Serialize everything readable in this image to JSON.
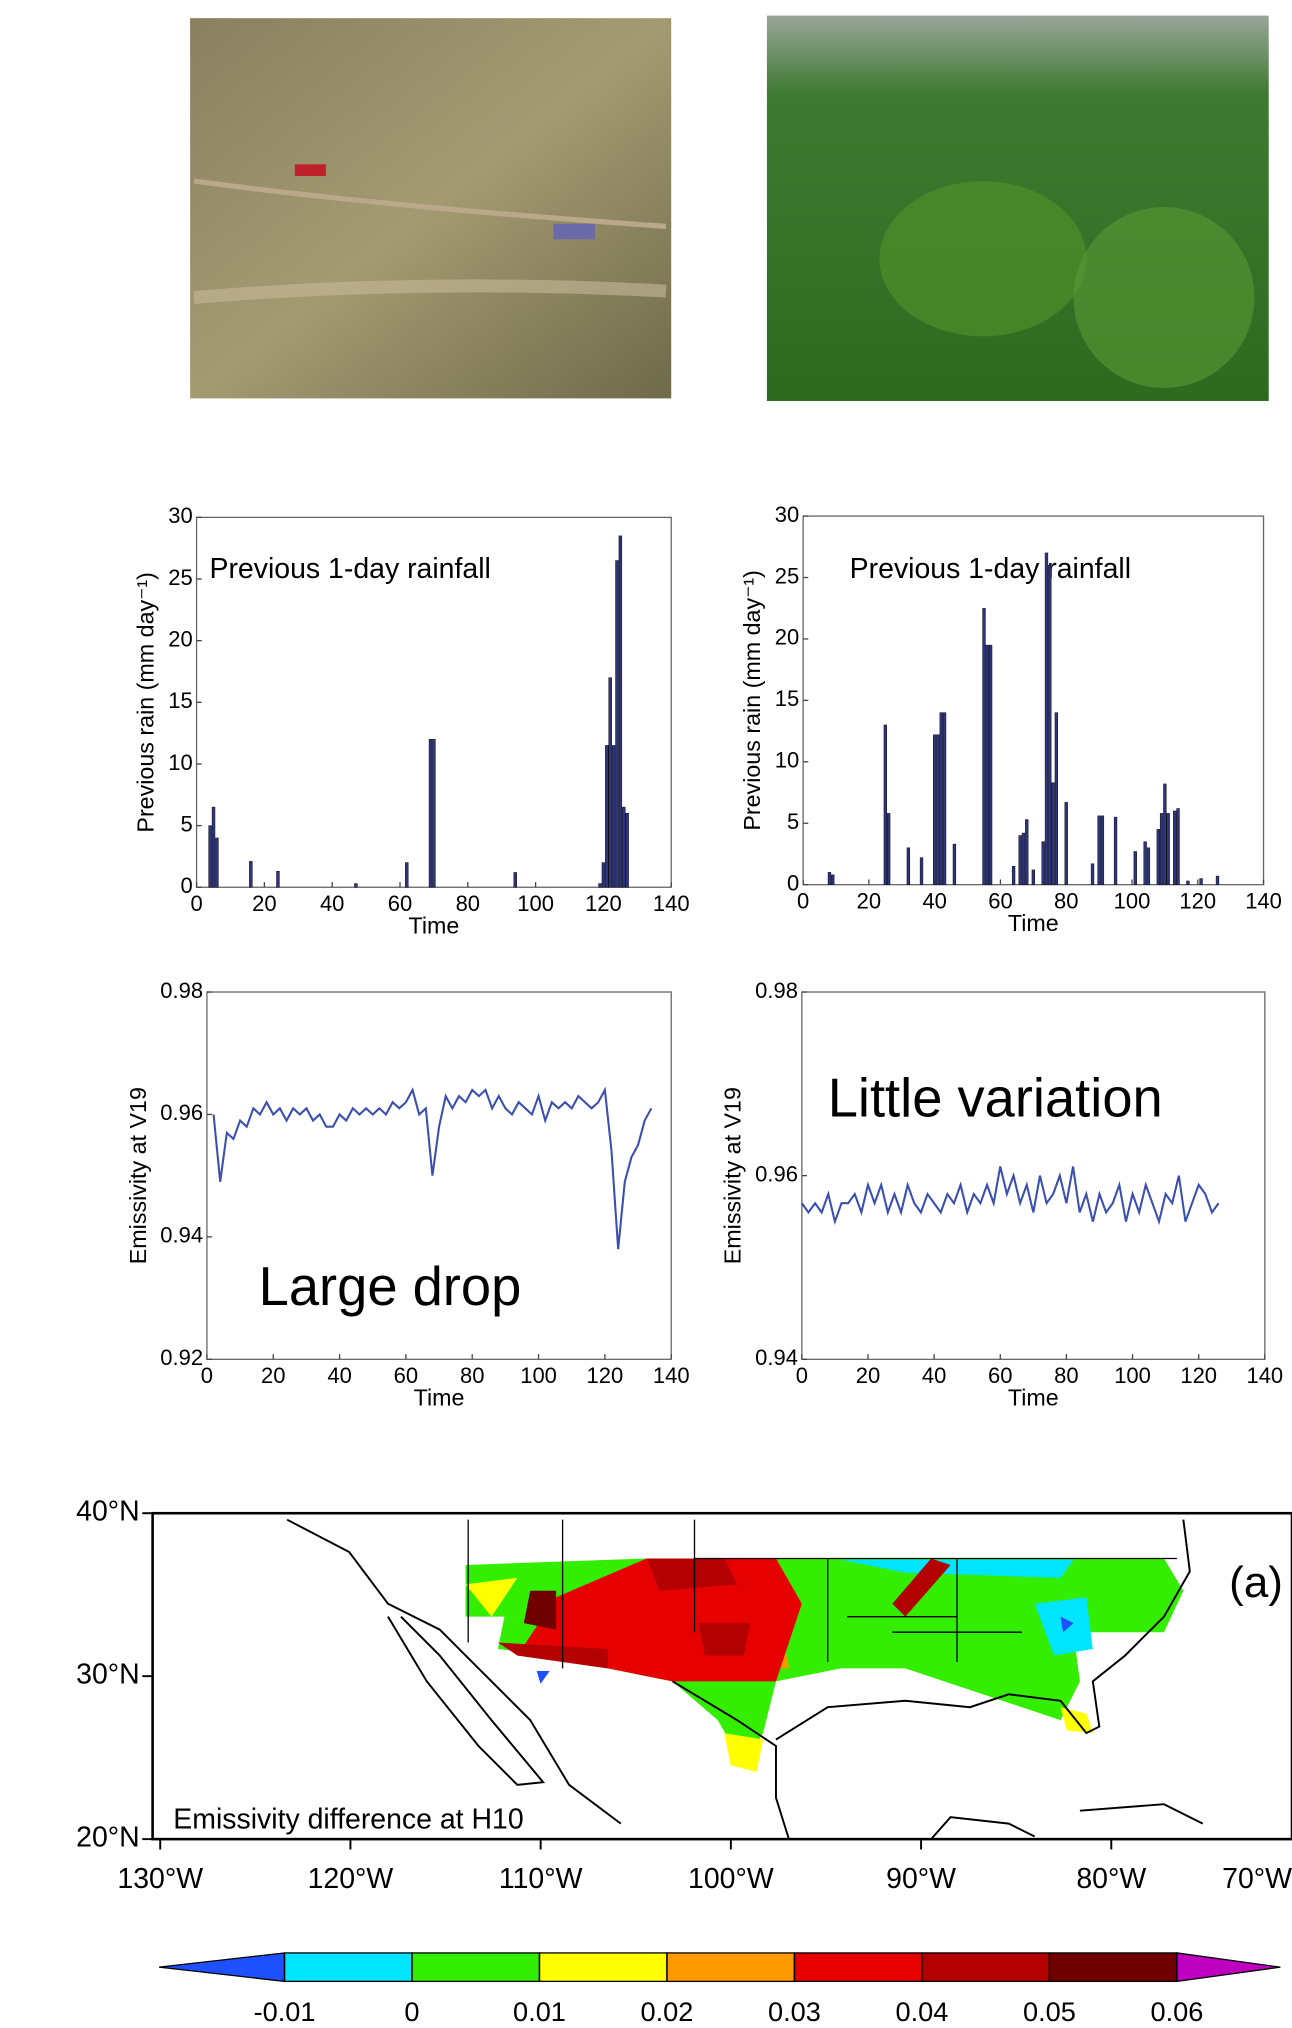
{
  "chart_data": [
    {
      "type": "bar",
      "annotation": "Previous  1-day rainfall",
      "xlabel": "Time",
      "ylabel": "Previous rain (mm day⁻¹)",
      "color": "#2e3580",
      "x": [
        4,
        5,
        6,
        16,
        24,
        47,
        62,
        69,
        70,
        94,
        119,
        120,
        121,
        122,
        123,
        124,
        125,
        126,
        127
      ],
      "values": [
        5,
        6.5,
        4,
        2.1,
        1.3,
        0.3,
        2,
        12,
        12,
        1.2,
        0.3,
        2,
        11.5,
        17,
        11.5,
        26.5,
        28.5,
        6.5,
        6
      ],
      "xlim": [
        0,
        140
      ],
      "ylim": [
        0,
        30
      ],
      "xticks": [
        0,
        20,
        40,
        60,
        80,
        100,
        120,
        140
      ],
      "yticks": [
        0,
        5,
        10,
        15,
        20,
        25,
        30
      ]
    },
    {
      "type": "bar",
      "annotation": "Previous  1-day rainfall",
      "xlabel": "Time",
      "ylabel": "Previous rain (mm day⁻¹)",
      "color": "#2e3580",
      "x": [
        8,
        9,
        25,
        26,
        32,
        36,
        40,
        41,
        42,
        43,
        46,
        55,
        56,
        57,
        64,
        66,
        67,
        68,
        70,
        73,
        74,
        75,
        76,
        77,
        80,
        88,
        90,
        91,
        95,
        101,
        104,
        105,
        108,
        109,
        110,
        111,
        113,
        114,
        117,
        121,
        126
      ],
      "values": [
        1,
        0.8,
        13,
        5.8,
        3,
        2.2,
        12.2,
        12.2,
        14,
        14,
        3.3,
        22.5,
        19.5,
        19.5,
        1.5,
        4,
        4.2,
        5.3,
        1.2,
        3.5,
        27,
        26,
        8.3,
        14,
        6.7,
        1.7,
        5.6,
        5.6,
        5.5,
        2.7,
        3.5,
        3,
        4.5,
        5.8,
        8.2,
        5.8,
        6,
        6.2,
        0.3,
        0.5,
        0.7
      ],
      "xlim": [
        0,
        140
      ],
      "ylim": [
        0,
        30
      ],
      "xticks": [
        0,
        20,
        40,
        60,
        80,
        100,
        120,
        140
      ],
      "yticks": [
        0,
        5,
        10,
        15,
        20,
        25,
        30
      ]
    },
    {
      "type": "line",
      "annotation": "Large drop",
      "xlabel": "Time",
      "ylabel": "Emissivity at V19",
      "color": "#3b4fb0",
      "x": [
        2,
        4,
        6,
        8,
        10,
        12,
        14,
        16,
        18,
        20,
        22,
        24,
        26,
        28,
        30,
        32,
        34,
        36,
        38,
        40,
        42,
        44,
        46,
        48,
        50,
        52,
        54,
        56,
        58,
        60,
        62,
        64,
        66,
        68,
        70,
        72,
        74,
        76,
        78,
        80,
        82,
        84,
        86,
        88,
        90,
        92,
        94,
        96,
        98,
        100,
        102,
        104,
        106,
        108,
        110,
        112,
        114,
        116,
        118,
        120,
        122,
        124,
        126,
        128,
        130,
        132,
        134
      ],
      "values": [
        0.96,
        0.949,
        0.957,
        0.956,
        0.959,
        0.958,
        0.961,
        0.96,
        0.962,
        0.96,
        0.961,
        0.959,
        0.961,
        0.96,
        0.961,
        0.959,
        0.96,
        0.958,
        0.958,
        0.96,
        0.959,
        0.961,
        0.96,
        0.961,
        0.96,
        0.961,
        0.96,
        0.962,
        0.961,
        0.962,
        0.964,
        0.96,
        0.961,
        0.95,
        0.958,
        0.963,
        0.961,
        0.963,
        0.962,
        0.964,
        0.963,
        0.964,
        0.961,
        0.963,
        0.961,
        0.96,
        0.962,
        0.961,
        0.96,
        0.963,
        0.959,
        0.962,
        0.961,
        0.962,
        0.961,
        0.963,
        0.962,
        0.961,
        0.962,
        0.964,
        0.954,
        0.938,
        0.949,
        0.953,
        0.955,
        0.959,
        0.961
      ],
      "xlim": [
        0,
        140
      ],
      "ylim": [
        0.92,
        0.98
      ],
      "xticks": [
        0,
        20,
        40,
        60,
        80,
        100,
        120,
        140
      ],
      "yticks": [
        0.92,
        0.94,
        0.96,
        0.98
      ]
    },
    {
      "type": "line",
      "annotation": "Little variation",
      "xlabel": "Time",
      "ylabel": "Emissivity at V19",
      "color": "#3b4fb0",
      "x": [
        0,
        2,
        4,
        6,
        8,
        10,
        12,
        14,
        16,
        18,
        20,
        22,
        24,
        26,
        28,
        30,
        32,
        34,
        36,
        38,
        40,
        42,
        44,
        46,
        48,
        50,
        52,
        54,
        56,
        58,
        60,
        62,
        64,
        66,
        68,
        70,
        72,
        74,
        76,
        78,
        80,
        82,
        84,
        86,
        88,
        90,
        92,
        94,
        96,
        98,
        100,
        102,
        104,
        106,
        108,
        110,
        112,
        114,
        116,
        118,
        120,
        122,
        124,
        126
      ],
      "values": [
        0.957,
        0.956,
        0.957,
        0.956,
        0.958,
        0.955,
        0.957,
        0.957,
        0.958,
        0.956,
        0.959,
        0.957,
        0.959,
        0.956,
        0.958,
        0.956,
        0.959,
        0.957,
        0.956,
        0.958,
        0.957,
        0.956,
        0.958,
        0.957,
        0.959,
        0.956,
        0.958,
        0.957,
        0.959,
        0.957,
        0.961,
        0.958,
        0.96,
        0.957,
        0.959,
        0.956,
        0.96,
        0.957,
        0.958,
        0.96,
        0.957,
        0.961,
        0.956,
        0.958,
        0.955,
        0.958,
        0.956,
        0.957,
        0.959,
        0.955,
        0.958,
        0.956,
        0.959,
        0.957,
        0.955,
        0.958,
        0.957,
        0.96,
        0.955,
        0.957,
        0.959,
        0.958,
        0.956,
        0.957
      ],
      "xlim": [
        0,
        140
      ],
      "ylim": [
        0.94,
        0.98
      ],
      "xticks": [
        0,
        20,
        40,
        60,
        80,
        100,
        120,
        140
      ],
      "yticks": [
        0.94,
        0.96,
        0.98
      ]
    },
    {
      "type": "map",
      "annotation": "Emissivity difference at H10",
      "panel_label": "(a)",
      "xlim": [
        -130.4,
        -70.5
      ],
      "ylim": [
        20,
        40
      ],
      "xticks": [
        {
          "value": -130,
          "label": "130°W"
        },
        {
          "value": -120,
          "label": "120°W"
        },
        {
          "value": -110,
          "label": "110°W"
        },
        {
          "value": -100,
          "label": "100°W"
        },
        {
          "value": -90,
          "label": "90°W"
        },
        {
          "value": -80,
          "label": "80°W"
        },
        {
          "value": -70,
          "label": "70°W"
        }
      ],
      "yticks": [
        {
          "value": 20,
          "label": "20°N"
        },
        {
          "value": 30,
          "label": "30°N"
        },
        {
          "value": 40,
          "label": "40°N"
        }
      ],
      "colorbar": {
        "ticks": [
          -0.01,
          0,
          0.01,
          0.02,
          0.03,
          0.04,
          0.05,
          0.06
        ],
        "colors": [
          "#1e50ff",
          "#00e5ff",
          "#33ee00",
          "#ffff00",
          "#ff9900",
          "#e60000",
          "#b30000",
          "#700000",
          "#c000c0"
        ]
      }
    }
  ]
}
